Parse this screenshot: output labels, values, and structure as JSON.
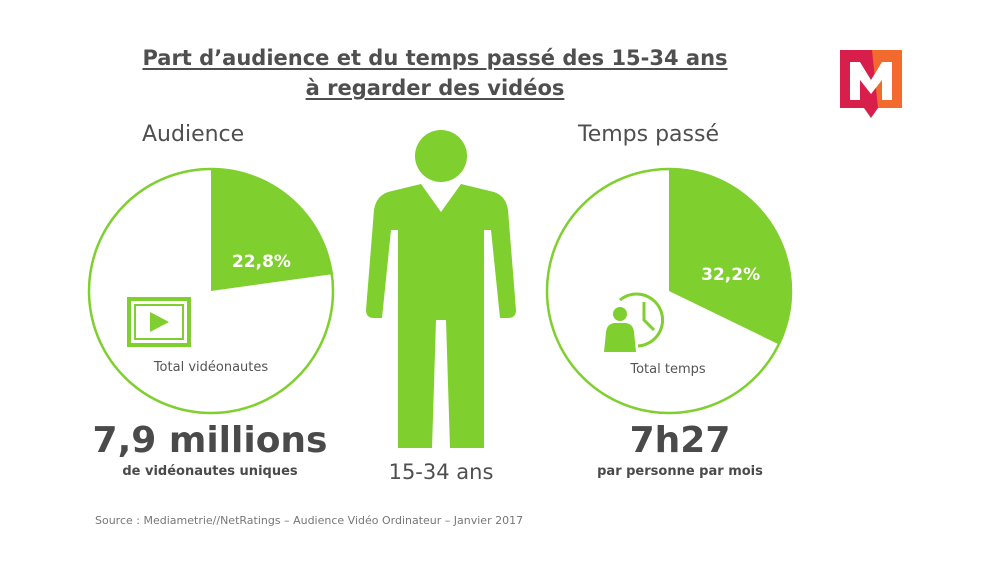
{
  "title": {
    "line1": "Part d’audience et du temps passé des 15-34 ans",
    "line2": "à regarder des vidéos"
  },
  "audience": {
    "heading": "Audience",
    "pct_label": "22,8%",
    "inner_label": "Total vidéonautes",
    "big_value": "7,9 millions",
    "sub_value": "de vidéonautes uniques",
    "icon": "video-play-icon"
  },
  "person": {
    "label": "15-34 ans",
    "icon": "person-silhouette-icon"
  },
  "temps": {
    "heading": "Temps passé",
    "pct_label": "32,2%",
    "inner_label": "Total temps",
    "big_value": "7h27",
    "sub_value": "par personne par mois",
    "icon": "person-clock-icon"
  },
  "source": "Source : Mediametrie//NetRatings – Audience Vidéo Ordinateur – Janvier 2017",
  "colors": {
    "green": "#7fcf2e",
    "text": "#4a4a4a",
    "logo_red": "#d81e4a",
    "logo_orange": "#f26a2e"
  },
  "chart_data": [
    {
      "type": "pie",
      "title": "Audience",
      "categories": [
        "22,8%",
        "Total vidéonautes"
      ],
      "values": [
        22.8,
        77.2
      ]
    },
    {
      "type": "pie",
      "title": "Temps passé",
      "categories": [
        "32,2%",
        "Total temps"
      ],
      "values": [
        32.2,
        67.8
      ]
    }
  ]
}
